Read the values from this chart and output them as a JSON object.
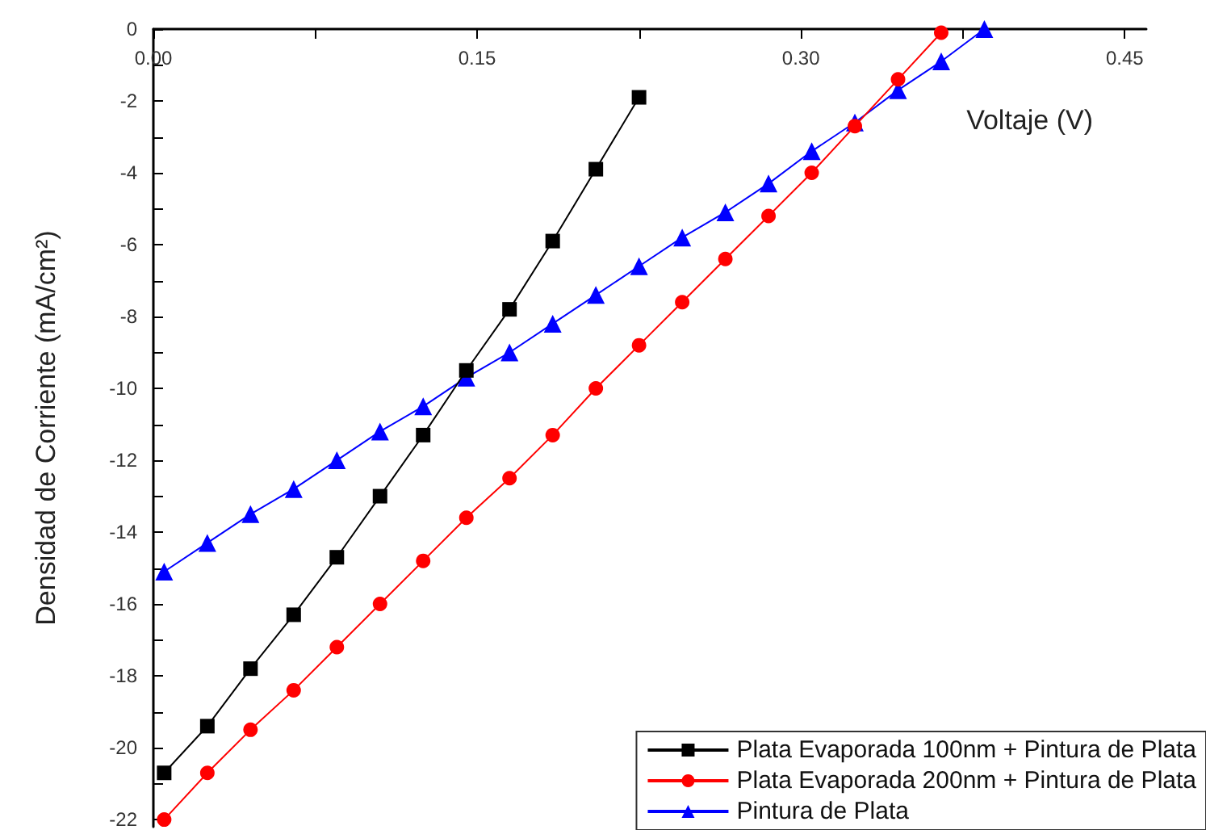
{
  "chart_data": {
    "type": "line",
    "xlabel": "Voltaje (V)",
    "ylabel": "Densidad de Corriente (mA/cm²)",
    "xlim": [
      0,
      0.46
    ],
    "ylim": [
      -22.2,
      0
    ],
    "xticks": [
      {
        "value": 0,
        "label": "0.00"
      },
      {
        "value": 0.075,
        "label": null
      },
      {
        "value": 0.15,
        "label": "0.15"
      },
      {
        "value": 0.225,
        "label": null
      },
      {
        "value": 0.3,
        "label": "0.30"
      },
      {
        "value": 0.375,
        "label": null
      },
      {
        "value": 0.45,
        "label": "0.45"
      }
    ],
    "yticks": [
      0,
      {
        "value": -1,
        "label": null
      },
      -2,
      {
        "value": -3,
        "label": null
      },
      -4,
      {
        "value": -5,
        "label": null
      },
      -6,
      {
        "value": -7,
        "label": null
      },
      -8,
      {
        "value": -9,
        "label": null
      },
      -10,
      {
        "value": -11,
        "label": null
      },
      -12,
      {
        "value": -13,
        "label": null
      },
      -14,
      {
        "value": -15,
        "label": null
      },
      -16,
      {
        "value": -17,
        "label": null
      },
      -18,
      {
        "value": -19,
        "label": null
      },
      -20,
      {
        "value": -21,
        "label": null
      },
      -22
    ],
    "grid": false,
    "legend": "bottom right",
    "series": [
      {
        "name": "Plata Evaporada 100nm + Pintura de Plata",
        "color": "#000000",
        "marker": "square",
        "x": [
          0.005,
          0.025,
          0.045,
          0.065,
          0.085,
          0.105,
          0.125,
          0.145,
          0.165,
          0.185,
          0.205,
          0.225
        ],
        "values": [
          -20.7,
          -19.4,
          -17.8,
          -16.3,
          -14.7,
          -13.0,
          -11.3,
          -9.5,
          -7.8,
          -5.9,
          -3.9,
          -1.9
        ]
      },
      {
        "name": "Plata Evaporada 200nm + Pintura de Plata",
        "color": "#ff0000",
        "marker": "circle",
        "x": [
          0.005,
          0.025,
          0.045,
          0.065,
          0.085,
          0.105,
          0.125,
          0.145,
          0.165,
          0.185,
          0.205,
          0.225,
          0.245,
          0.265,
          0.285,
          0.305,
          0.325,
          0.345,
          0.365
        ],
        "values": [
          -22.0,
          -20.7,
          -19.5,
          -18.4,
          -17.2,
          -16.0,
          -14.8,
          -13.6,
          -12.5,
          -11.3,
          -10.0,
          -8.8,
          -7.6,
          -6.4,
          -5.2,
          -4.0,
          -2.7,
          -1.4,
          -0.1
        ]
      },
      {
        "name": "Pintura de Plata",
        "color": "#0000ff",
        "marker": "triangle",
        "x": [
          0.005,
          0.025,
          0.045,
          0.065,
          0.085,
          0.105,
          0.125,
          0.145,
          0.165,
          0.185,
          0.205,
          0.225,
          0.245,
          0.265,
          0.285,
          0.305,
          0.325,
          0.345,
          0.365,
          0.385
        ],
        "values": [
          -15.1,
          -14.3,
          -13.5,
          -12.8,
          -12.0,
          -11.2,
          -10.5,
          -9.7,
          -9.0,
          -8.2,
          -7.4,
          -6.6,
          -5.8,
          -5.1,
          -4.3,
          -3.4,
          -2.6,
          -1.7,
          -0.9,
          0.0
        ]
      }
    ]
  }
}
